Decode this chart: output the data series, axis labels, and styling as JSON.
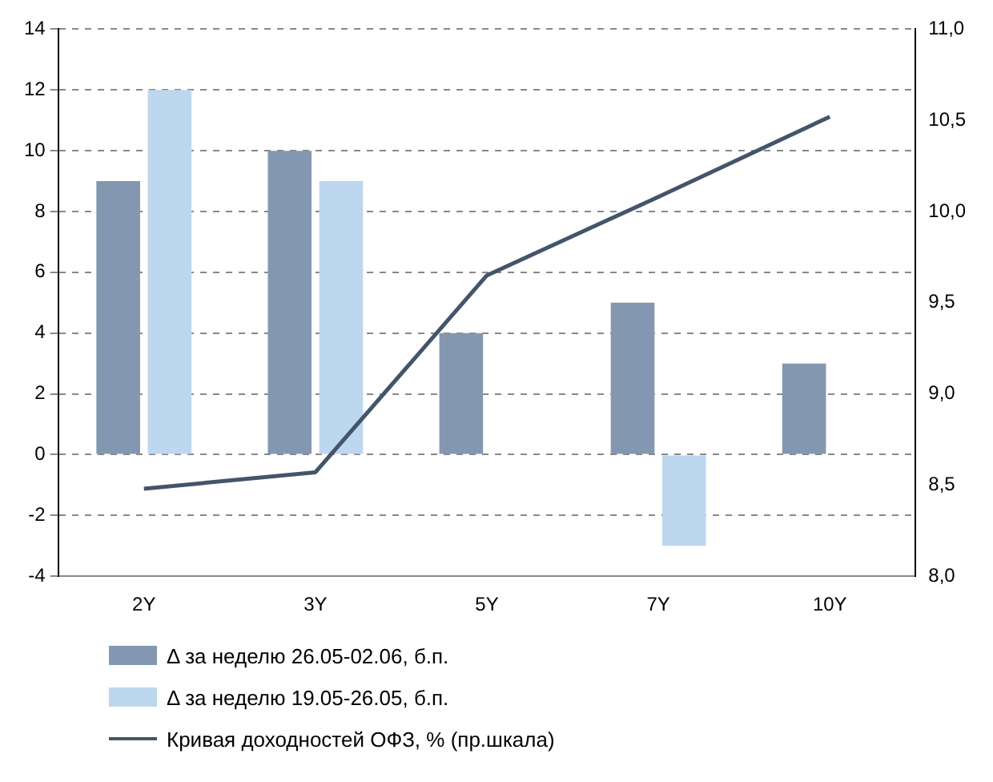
{
  "chart_data": {
    "type": "bar",
    "categories": [
      "2Y",
      "3Y",
      "5Y",
      "7Y",
      "10Y"
    ],
    "series": [
      {
        "name": "Δ за неделю 26.05-02.06, б.п.",
        "color": "#8497b0",
        "values": [
          9,
          10,
          4,
          5,
          3
        ]
      },
      {
        "name": "Δ за неделю 19.05-26.05, б.п.",
        "color": "#bdd7ee",
        "values": [
          12,
          9,
          null,
          -3,
          null
        ]
      },
      {
        "name": "Кривая доходностей ОФЗ, % (пр.шкала)",
        "type": "line",
        "axis": "y2",
        "color": "#44546a",
        "values": [
          8.48,
          8.57,
          9.65,
          10.08,
          10.52
        ]
      }
    ],
    "ylim": [
      -4,
      14
    ],
    "yticks": [
      -4,
      -2,
      0,
      2,
      4,
      6,
      8,
      10,
      12,
      14
    ],
    "y2lim": [
      8,
      11
    ],
    "y2ticks": [
      {
        "value": 8,
        "label": "8,0"
      },
      {
        "value": 8.5,
        "label": "8,5"
      },
      {
        "value": 9,
        "label": "9,0"
      },
      {
        "value": 9.5,
        "label": "9,5"
      },
      {
        "value": 10,
        "label": "10,0"
      },
      {
        "value": 10.5,
        "label": "10,5"
      },
      {
        "value": 11,
        "label": "11,0"
      }
    ],
    "grid": "y",
    "legend": "bottom",
    "marker": "none",
    "line_style": "solid"
  }
}
